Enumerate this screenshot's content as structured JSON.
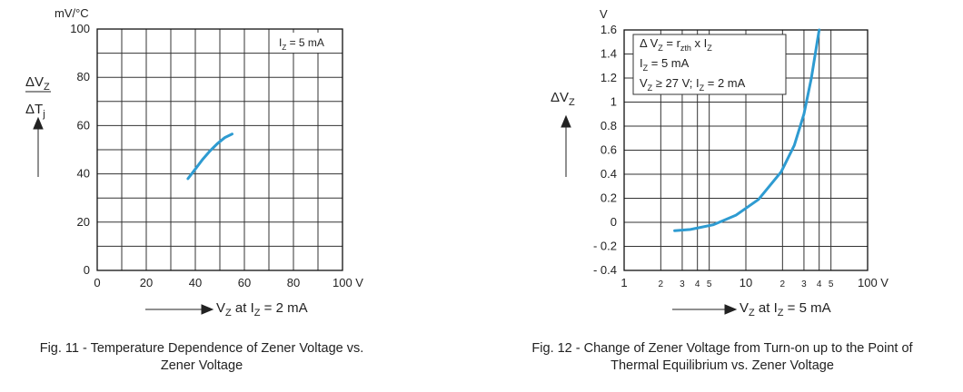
{
  "chart_data": [
    {
      "type": "line",
      "unit_label": "mV/°C",
      "y_label": {
        "numerator": [
          "ΔV",
          "Z"
        ],
        "denominator": [
          "ΔT",
          "j"
        ]
      },
      "x_label": [
        "V",
        "Z",
        " at I",
        "Z",
        " = 2 mA"
      ],
      "annotations": [
        [
          "I",
          "Z",
          " = 5 mA"
        ]
      ],
      "caption": [
        "Fig. 11 - Temperature Dependence of Zener Voltage vs.",
        "Zener Voltage"
      ],
      "xlim": [
        0,
        100
      ],
      "ylim": [
        0,
        100
      ],
      "xticks": [
        0,
        20,
        40,
        60,
        80,
        {
          "value": 100,
          "label": "100 V"
        }
      ],
      "yticks": [
        0,
        20,
        40,
        60,
        80,
        100
      ],
      "x_minor_ticks": [
        10,
        30,
        50,
        70,
        90
      ],
      "y_minor_ticks": [
        10,
        30,
        50,
        70,
        90
      ],
      "grid": true,
      "series": [
        {
          "color": "#2e9bd1",
          "x": [
            37,
            40,
            43,
            46,
            49,
            52,
            55
          ],
          "values": [
            38,
            42,
            46,
            49.5,
            52.5,
            55,
            56.5
          ]
        }
      ]
    },
    {
      "type": "line",
      "unit_label": "V",
      "y_label": {
        "numerator": [
          "ΔV",
          "Z"
        ]
      },
      "x_label": [
        "V",
        "Z",
        " at I",
        "Z",
        " = 5 mA"
      ],
      "annotations": [
        [
          "Δ V",
          "Z",
          " = r",
          "zth",
          " x I",
          "Z"
        ],
        [
          "I",
          "Z",
          " = 5 mA"
        ],
        [
          "V",
          "Z",
          " ≥ 27 V; I",
          "Z",
          " = 2 mA"
        ]
      ],
      "caption": [
        "Fig. 12 - Change of Zener Voltage from Turn-on up to the Point of",
        "Thermal Equilibrium vs. Zener Voltage"
      ],
      "x_scale": "log",
      "xlim": [
        1,
        100
      ],
      "ylim": [
        -0.4,
        1.6
      ],
      "xticks": [
        1,
        2,
        3,
        4,
        5,
        10,
        {
          "value": 20,
          "label": "2"
        },
        {
          "value": 30,
          "label": "3"
        },
        {
          "value": 40,
          "label": "4"
        },
        {
          "value": 50,
          "label": "5"
        },
        {
          "value": 100,
          "label": "100 V"
        }
      ],
      "yticks": [
        {
          "value": -0.4,
          "label": "- 0.4"
        },
        {
          "value": -0.2,
          "label": "- 0.2"
        },
        0,
        0.2,
        0.4,
        0.6,
        0.8,
        1,
        1.2,
        1.4,
        1.6
      ],
      "grid": true,
      "series": [
        {
          "color": "#2e9bd1",
          "x": [
            2.6,
            3.5,
            5.4,
            8.3,
            12.7,
            19.5,
            25,
            30,
            34.5,
            38.5,
            40
          ],
          "values": [
            -0.07,
            -0.06,
            -0.02,
            0.06,
            0.19,
            0.42,
            0.64,
            0.9,
            1.2,
            1.5,
            1.6
          ]
        }
      ]
    }
  ]
}
